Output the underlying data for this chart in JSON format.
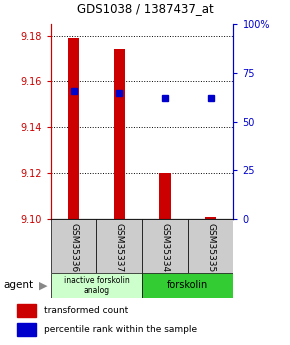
{
  "title": "GDS1038 / 1387437_at",
  "samples": [
    "GSM35336",
    "GSM35337",
    "GSM35334",
    "GSM35335"
  ],
  "red_values": [
    9.179,
    9.174,
    9.12,
    9.101
  ],
  "red_base": 9.1,
  "blue_values": [
    9.156,
    9.155,
    9.153,
    9.153
  ],
  "ylim": [
    9.1,
    9.185
  ],
  "yticks_left": [
    9.1,
    9.12,
    9.14,
    9.16,
    9.18
  ],
  "yticks_right": [
    0,
    25,
    50,
    75,
    100
  ],
  "yticks_right_labels": [
    "0",
    "25",
    "50",
    "75",
    "100%"
  ],
  "left_color": "#cc0000",
  "right_color": "#0000cc",
  "bar_color": "#cc0000",
  "dot_color": "#0000cc",
  "group1_label": "inactive forskolin\nanalog",
  "group2_label": "forskolin",
  "group1_color": "#ccffcc",
  "group2_color": "#33cc33",
  "sample_box_color": "#cccccc",
  "agent_label": "agent",
  "legend1": "transformed count",
  "legend2": "percentile rank within the sample",
  "bar_width": 0.25,
  "x_positions": [
    0,
    1,
    2,
    3
  ]
}
